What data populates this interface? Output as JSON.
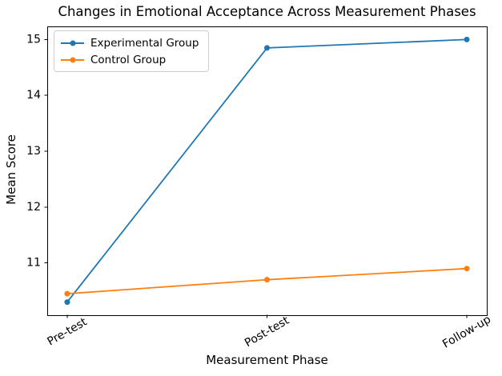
{
  "chart_data": {
    "type": "line",
    "title": "Changes in Emotional Acceptance Across Measurement Phases",
    "xlabel": "Measurement Phase",
    "ylabel": "Mean Score",
    "categories": [
      "Pre-test",
      "Post-test",
      "Follow-up"
    ],
    "series": [
      {
        "name": "Experimental Group",
        "color": "#1f77b4",
        "marker": "circle",
        "values": [
          10.3,
          14.85,
          15.0
        ]
      },
      {
        "name": "Control Group",
        "color": "#ff7f0e",
        "marker": "circle",
        "values": [
          10.45,
          10.7,
          10.9
        ]
      }
    ],
    "yticks": [
      11,
      12,
      13,
      14,
      15
    ],
    "ylim": [
      10.065,
      15.235
    ],
    "xlim": [
      -0.1,
      2.1
    ],
    "xtick_rotation_deg": 30,
    "grid": false,
    "legend": {
      "position": "upper-left"
    }
  },
  "colors": {
    "axis": "#000000",
    "text": "#000000",
    "legend_border": "#cccccc",
    "background": "#ffffff"
  }
}
